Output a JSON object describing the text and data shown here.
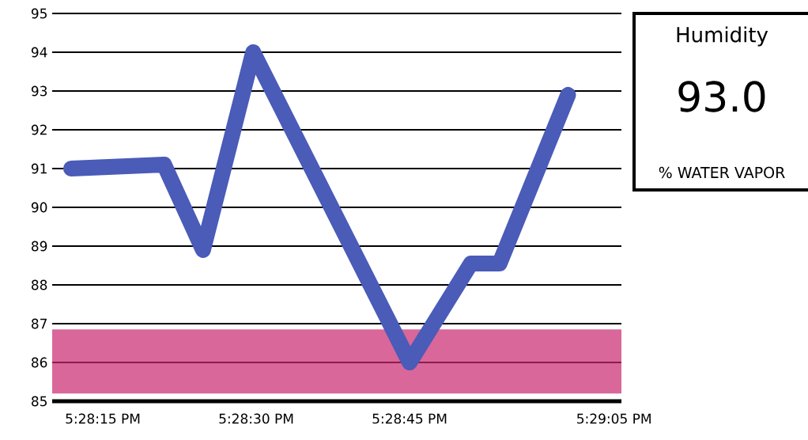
{
  "chart_data": [
    {
      "type": "line",
      "x": [
        17.469972,
        17.4725,
        17.473556,
        17.474917,
        17.479167,
        17.480833,
        17.481611,
        17.483472
      ],
      "series": [
        {
          "color": "#4a5bb8",
          "values": [
            91.0,
            91.1,
            88.9,
            94.0,
            86.0,
            88.55,
            88.55,
            92.9
          ]
        }
      ],
      "xlim": [
        17.469458,
        17.484922
      ],
      "xticks": [
        {
          "value": 17.470833,
          "label": "5:28:15 PM"
        },
        {
          "value": 17.475,
          "label": "5:28:30 PM"
        },
        {
          "value": 17.479167,
          "label": "5:28:45 PM"
        },
        {
          "value": 17.484722,
          "label": "5:29:05 PM"
        }
      ],
      "ylim": [
        85,
        95
      ],
      "yticks": [
        85,
        86,
        87,
        88,
        89,
        90,
        91,
        92,
        93,
        94,
        95
      ],
      "grid": "y",
      "line_style": "solid",
      "bands": [
        {
          "axis": "y",
          "from": 85.2,
          "to": 86.85,
          "color": "#d9679a"
        }
      ]
    },
    {
      "type": "other",
      "title": "Humidity",
      "annotations": [
        "93.0",
        "% WATER VAPOR"
      ]
    }
  ]
}
